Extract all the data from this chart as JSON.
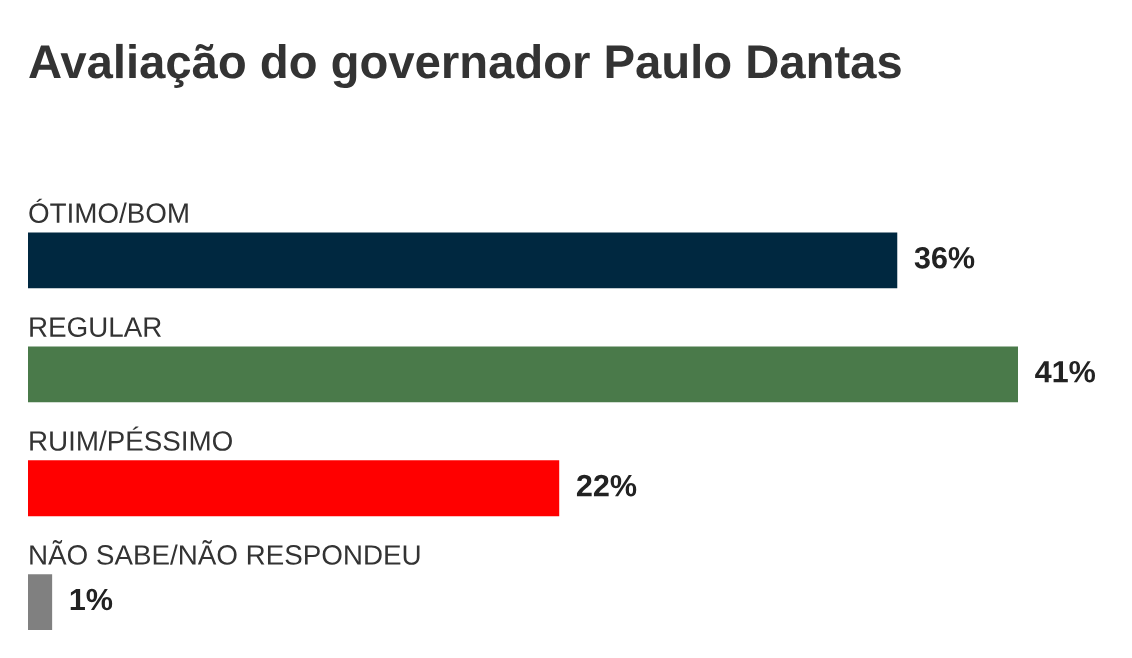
{
  "chart_data": {
    "type": "bar",
    "orientation": "horizontal",
    "title": "Avaliação do governador Paulo Dantas",
    "categories": [
      "ÓTIMO/BOM",
      "REGULAR",
      "RUIM/PÉSSIMO",
      "NÃO SABE/NÃO RESPONDEU"
    ],
    "values": [
      36,
      41,
      22,
      1
    ],
    "colors": [
      "#002840",
      "#4a7a4a",
      "#ff0000",
      "#808080"
    ],
    "value_labels": [
      "36%",
      "41%",
      "22%",
      "1%"
    ]
  }
}
